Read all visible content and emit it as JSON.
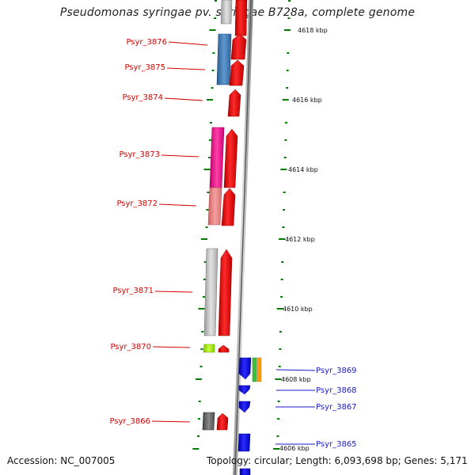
{
  "title": "Pseudomonas syringae pv. syringae B728a, complete genome",
  "accession": "Accession: NC_007005",
  "topology": "Topology: circular; Length: 6,093,698 bp; Genes: 5,171",
  "kbp_labels": [
    "4618 kbp",
    "4616 kbp",
    "4614 kbp",
    "4612 kbp",
    "4610 kbp",
    "4608 kbp",
    "4606 kbp"
  ],
  "left_genes": [
    "Psyr_3876",
    "Psyr_3875",
    "Psyr_3874",
    "Psyr_3873",
    "Psyr_3872",
    "Psyr_3871",
    "Psyr_3870",
    "Psyr_3866"
  ],
  "right_genes": [
    "Psyr_3869",
    "Psyr_3868",
    "Psyr_3867",
    "Psyr_3865"
  ],
  "colors": {
    "left_label": "#d40000",
    "right_label": "#1a1acc",
    "feature_red": "#ff0000",
    "feature_blue": "#0000ff",
    "tick_green": "#007a00"
  }
}
